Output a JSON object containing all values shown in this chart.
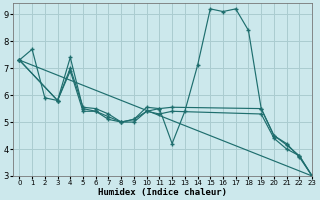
{
  "xlabel": "Humidex (Indice chaleur)",
  "xlim": [
    -0.5,
    23
  ],
  "ylim": [
    3,
    9.4
  ],
  "yticks": [
    3,
    4,
    5,
    6,
    7,
    8,
    9
  ],
  "xticks": [
    0,
    1,
    2,
    3,
    4,
    5,
    6,
    7,
    8,
    9,
    10,
    11,
    12,
    13,
    14,
    15,
    16,
    17,
    18,
    19,
    20,
    21,
    22,
    23
  ],
  "bg_color": "#cce8ec",
  "grid_color": "#aaccd0",
  "line_color": "#1e6e6e",
  "lines": [
    {
      "x": [
        0,
        1,
        2,
        3,
        4,
        5,
        6,
        7,
        8,
        9,
        10,
        11,
        12,
        13,
        14,
        15,
        16,
        17,
        18,
        19,
        20,
        21,
        22,
        23
      ],
      "y": [
        7.3,
        7.7,
        5.9,
        5.8,
        7.4,
        5.5,
        5.4,
        5.1,
        5.0,
        5.1,
        5.4,
        5.5,
        4.2,
        5.4,
        7.1,
        9.2,
        9.1,
        9.2,
        8.4,
        5.5,
        4.5,
        4.2,
        3.7,
        3.0
      ]
    },
    {
      "x": [
        0,
        3,
        4,
        5,
        6,
        7,
        8,
        9,
        10,
        11,
        12,
        19,
        20,
        21,
        22,
        23
      ],
      "y": [
        7.3,
        5.8,
        7.0,
        5.55,
        5.5,
        5.3,
        5.0,
        5.1,
        5.55,
        5.5,
        5.55,
        5.5,
        4.5,
        4.15,
        3.75,
        3.0
      ]
    },
    {
      "x": [
        0,
        3,
        4,
        5,
        6,
        7,
        8,
        9,
        10,
        11,
        12,
        19,
        20,
        21,
        22,
        23
      ],
      "y": [
        7.3,
        5.8,
        6.9,
        5.4,
        5.4,
        5.2,
        5.0,
        5.0,
        5.4,
        5.3,
        5.4,
        5.3,
        4.4,
        4.0,
        3.75,
        3.0
      ]
    },
    {
      "x": [
        0,
        23
      ],
      "y": [
        7.3,
        3.0
      ]
    }
  ]
}
